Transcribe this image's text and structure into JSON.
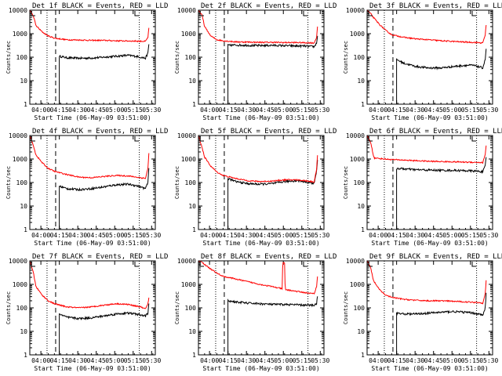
{
  "figure": {
    "colors": {
      "events": "#000000",
      "lld": "#ff0000",
      "axes": "#000000",
      "background": "#ffffff"
    },
    "x_axis_title": "Start Time (06-May-09 03:51:00)",
    "y_axis_title": "Counts/sec",
    "x_tick_labels": [
      "04:00",
      "04:15",
      "04:30",
      "04:45",
      "05:00",
      "05:15",
      "05:30"
    ],
    "y_tick_labels": [
      "1",
      "10",
      "100",
      "1000",
      "10000"
    ]
  },
  "chart_data": [
    {
      "type": "line",
      "title": "Det 1f BLACK = Events, RED = LLD",
      "x_unit": "minutes after 03:51:00",
      "xlim": [
        0,
        102
      ],
      "ylim": [
        1,
        10000
      ],
      "yscale": "log",
      "markers": {
        "dotted": [
          14,
          89
        ],
        "dashed": [
          21
        ]
      },
      "series": [
        {
          "name": "Events",
          "x": [
            24,
            30,
            40,
            50,
            60,
            70,
            80,
            86,
            90,
            94,
            96,
            97
          ],
          "values": [
            110,
            95,
            90,
            92,
            100,
            110,
            120,
            110,
            100,
            90,
            150,
            450
          ]
        },
        {
          "name": "LLD",
          "x": [
            0,
            3,
            5,
            10,
            15,
            20,
            30,
            40,
            50,
            60,
            70,
            80,
            90,
            94,
            96,
            97
          ],
          "values": [
            10000,
            5500,
            2200,
            1200,
            800,
            650,
            550,
            540,
            520,
            520,
            500,
            490,
            480,
            470,
            700,
            2200
          ]
        }
      ]
    },
    {
      "type": "line",
      "title": "Det 2f BLACK = Events, RED = LLD",
      "x_unit": "minutes after 03:51:00",
      "xlim": [
        0,
        102
      ],
      "ylim": [
        1,
        10000
      ],
      "yscale": "log",
      "markers": {
        "dotted": [
          14,
          89
        ],
        "dashed": [
          21
        ]
      },
      "series": [
        {
          "name": "Events",
          "x": [
            24,
            30,
            40,
            50,
            60,
            70,
            80,
            86,
            90,
            94,
            96,
            97
          ],
          "values": [
            320,
            330,
            320,
            310,
            320,
            310,
            300,
            300,
            290,
            280,
            400,
            1000
          ]
        },
        {
          "name": "LLD",
          "x": [
            0,
            3,
            5,
            10,
            15,
            20,
            30,
            40,
            50,
            60,
            70,
            80,
            90,
            94,
            96,
            97
          ],
          "values": [
            10000,
            6000,
            2000,
            800,
            550,
            500,
            450,
            440,
            430,
            430,
            420,
            420,
            410,
            400,
            700,
            2500
          ]
        }
      ]
    },
    {
      "type": "line",
      "title": "Det 3f BLACK = Events, RED = LLD",
      "x_unit": "minutes after 03:51:00",
      "xlim": [
        0,
        102
      ],
      "ylim": [
        1,
        10000
      ],
      "yscale": "log",
      "markers": {
        "dotted": [
          14,
          89
        ],
        "dashed": [
          21
        ]
      },
      "series": [
        {
          "name": "Events",
          "x": [
            24,
            30,
            40,
            50,
            60,
            70,
            80,
            86,
            90,
            94,
            96,
            97
          ],
          "values": [
            80,
            55,
            40,
            35,
            35,
            40,
            45,
            45,
            40,
            35,
            80,
            300
          ]
        },
        {
          "name": "LLD",
          "x": [
            0,
            3,
            5,
            10,
            15,
            20,
            30,
            40,
            50,
            60,
            70,
            80,
            90,
            94,
            96,
            97
          ],
          "values": [
            10000,
            7000,
            5000,
            2500,
            1400,
            900,
            700,
            600,
            550,
            500,
            470,
            440,
            420,
            400,
            900,
            3000
          ]
        }
      ]
    },
    {
      "type": "line",
      "title": "Det 4f BLACK = Events, RED = LLD",
      "x_unit": "minutes after 03:51:00",
      "xlim": [
        0,
        102
      ],
      "ylim": [
        1,
        10000
      ],
      "yscale": "log",
      "markers": {
        "dotted": [
          14,
          89
        ],
        "dashed": [
          21
        ]
      },
      "series": [
        {
          "name": "Events",
          "x": [
            24,
            30,
            40,
            50,
            60,
            70,
            80,
            86,
            90,
            94,
            96,
            97
          ],
          "values": [
            70,
            55,
            50,
            55,
            65,
            80,
            85,
            75,
            65,
            55,
            100,
            600
          ]
        },
        {
          "name": "LLD",
          "x": [
            0,
            3,
            5,
            10,
            15,
            20,
            30,
            40,
            50,
            60,
            70,
            80,
            90,
            94,
            96,
            97
          ],
          "values": [
            10000,
            3500,
            1500,
            700,
            400,
            300,
            220,
            170,
            160,
            180,
            200,
            190,
            160,
            150,
            400,
            2500
          ]
        }
      ]
    },
    {
      "type": "line",
      "title": "Det 5f BLACK = Events, RED = LLD",
      "x_unit": "minutes after 03:51:00",
      "xlim": [
        0,
        102
      ],
      "ylim": [
        1,
        10000
      ],
      "yscale": "log",
      "markers": {
        "dotted": [
          14,
          89
        ],
        "dashed": [
          21
        ]
      },
      "series": [
        {
          "name": "Events",
          "x": [
            24,
            30,
            40,
            50,
            60,
            70,
            80,
            86,
            90,
            94,
            96,
            97
          ],
          "values": [
            150,
            110,
            90,
            85,
            90,
            110,
            120,
            110,
            100,
            90,
            300,
            1200
          ]
        },
        {
          "name": "LLD",
          "x": [
            0,
            3,
            5,
            10,
            15,
            20,
            30,
            40,
            50,
            60,
            70,
            80,
            90,
            94,
            96,
            97
          ],
          "values": [
            10000,
            3000,
            1200,
            500,
            280,
            200,
            150,
            120,
            110,
            115,
            130,
            130,
            115,
            105,
            350,
            2000
          ]
        }
      ]
    },
    {
      "type": "line",
      "title": "Det 6f BLACK = Events, RED = LLD",
      "x_unit": "minutes after 03:51:00",
      "xlim": [
        0,
        102
      ],
      "ylim": [
        1,
        10000
      ],
      "yscale": "log",
      "markers": {
        "dotted": [
          14,
          89
        ],
        "dashed": [
          21
        ]
      },
      "series": [
        {
          "name": "Events",
          "x": [
            24,
            30,
            40,
            50,
            60,
            70,
            80,
            86,
            90,
            94,
            96,
            97
          ],
          "values": [
            400,
            380,
            350,
            340,
            330,
            330,
            320,
            310,
            300,
            290,
            500,
            1500
          ]
        },
        {
          "name": "LLD",
          "x": [
            0,
            3,
            5,
            6,
            10,
            15,
            20,
            30,
            40,
            50,
            60,
            70,
            80,
            90,
            94,
            96,
            97
          ],
          "values": [
            10000,
            5000,
            1500,
            1100,
            1050,
            1000,
            950,
            900,
            850,
            800,
            780,
            760,
            740,
            720,
            700,
            1500,
            5000
          ]
        }
      ]
    },
    {
      "type": "line",
      "title": "Det 7f BLACK = Events, RED = LLD",
      "x_unit": "minutes after 03:51:00",
      "xlim": [
        0,
        102
      ],
      "ylim": [
        1,
        10000
      ],
      "yscale": "log",
      "markers": {
        "dotted": [
          14,
          89
        ],
        "dashed": [
          21
        ]
      },
      "series": [
        {
          "name": "Events",
          "x": [
            24,
            30,
            40,
            50,
            60,
            70,
            80,
            86,
            90,
            94,
            96,
            97
          ],
          "values": [
            55,
            40,
            35,
            38,
            45,
            55,
            60,
            55,
            50,
            45,
            60,
            200
          ]
        },
        {
          "name": "LLD",
          "x": [
            0,
            3,
            5,
            10,
            15,
            20,
            30,
            40,
            50,
            60,
            70,
            80,
            90,
            94,
            96,
            97
          ],
          "values": [
            10000,
            3000,
            800,
            350,
            200,
            150,
            110,
            100,
            110,
            130,
            150,
            140,
            110,
            90,
            150,
            300
          ]
        }
      ]
    },
    {
      "type": "line",
      "title": "Det 8f BLACK = Events, RED = LLD",
      "x_unit": "minutes after 03:51:00",
      "xlim": [
        0,
        102
      ],
      "ylim": [
        1,
        10000
      ],
      "yscale": "log",
      "markers": {
        "dotted": [
          14,
          89
        ],
        "dashed": [
          21
        ]
      },
      "series": [
        {
          "name": "Events",
          "x": [
            24,
            30,
            40,
            50,
            60,
            70,
            80,
            86,
            90,
            94,
            96,
            97
          ],
          "values": [
            200,
            180,
            160,
            150,
            140,
            140,
            135,
            130,
            130,
            130,
            150,
            400
          ]
        },
        {
          "name": "LLD",
          "x": [
            0,
            3,
            5,
            10,
            15,
            20,
            30,
            40,
            50,
            60,
            68,
            68.5,
            70,
            70.5,
            80,
            90,
            94,
            96,
            97
          ],
          "values": [
            10000,
            9000,
            7000,
            4500,
            3000,
            2200,
            1700,
            1300,
            1000,
            800,
            650,
            8000,
            8000,
            600,
            500,
            420,
            400,
            800,
            3000
          ]
        }
      ]
    },
    {
      "type": "line",
      "title": "Det 9f BLACK = Events, RED = LLD",
      "x_unit": "minutes after 03:51:00",
      "xlim": [
        0,
        102
      ],
      "ylim": [
        1,
        10000
      ],
      "yscale": "log",
      "markers": {
        "dotted": [
          14,
          89
        ],
        "dashed": [
          21
        ]
      },
      "series": [
        {
          "name": "Events",
          "x": [
            24,
            30,
            40,
            50,
            60,
            70,
            80,
            86,
            90,
            94,
            96,
            97
          ],
          "values": [
            60,
            55,
            55,
            60,
            65,
            70,
            65,
            60,
            55,
            50,
            100,
            600
          ]
        },
        {
          "name": "LLD",
          "x": [
            0,
            3,
            5,
            10,
            15,
            20,
            30,
            40,
            50,
            60,
            70,
            80,
            90,
            94,
            96,
            97
          ],
          "values": [
            10000,
            5000,
            1500,
            600,
            350,
            280,
            230,
            210,
            200,
            200,
            190,
            180,
            170,
            160,
            400,
            2000
          ]
        }
      ]
    }
  ]
}
